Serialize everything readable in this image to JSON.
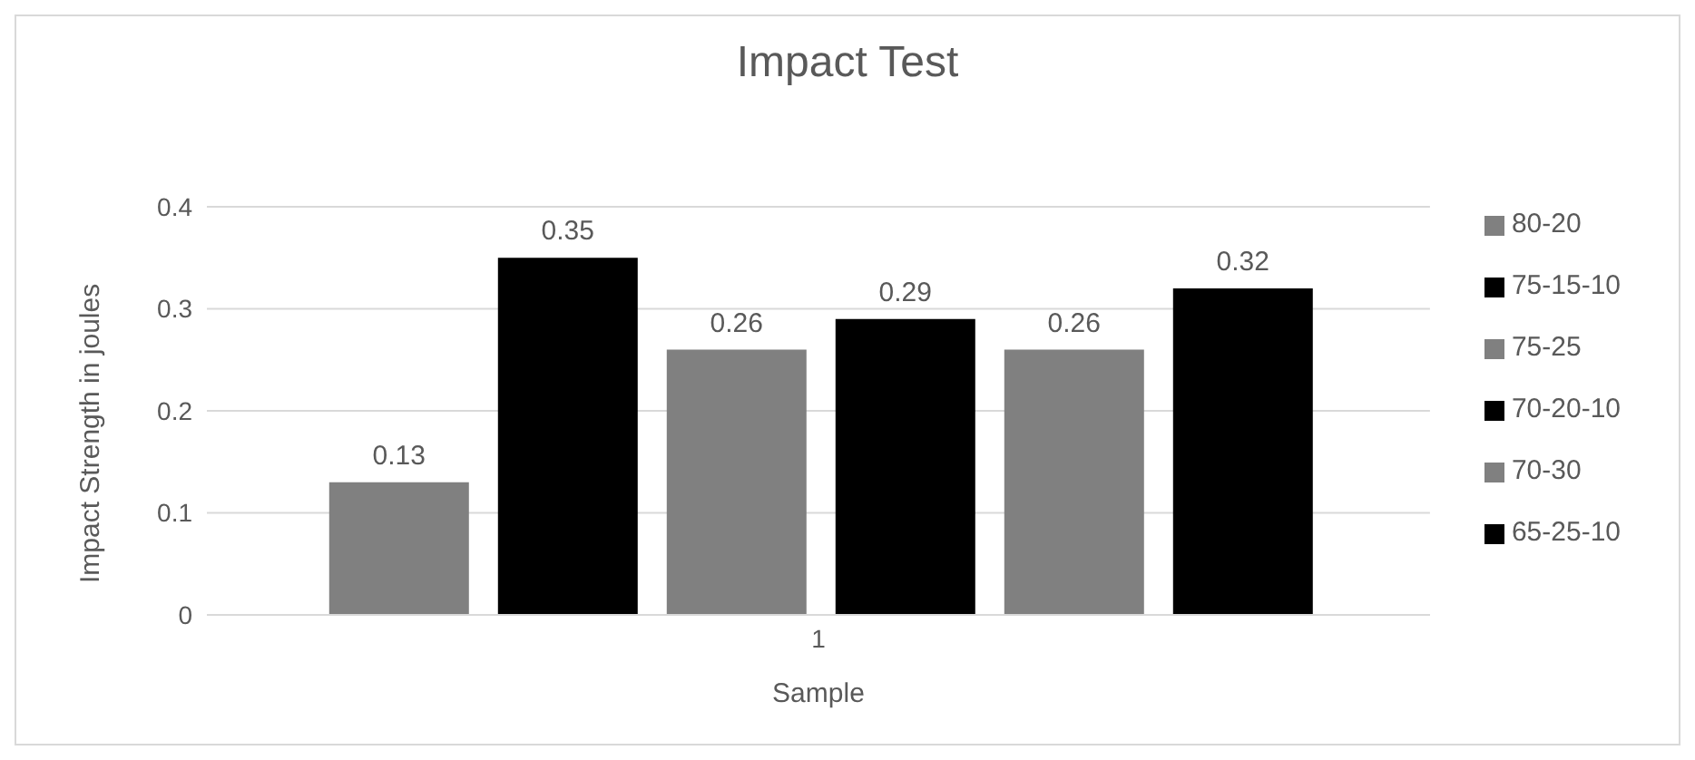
{
  "chart_data": {
    "type": "bar",
    "title": "Impact Test",
    "xlabel": "Sample",
    "ylabel": "Impact Strength in joules",
    "categories": [
      "1"
    ],
    "series": [
      {
        "name": "80-20",
        "color": "#808080",
        "values": [
          0.13
        ]
      },
      {
        "name": "75-15-10",
        "color": "#000000",
        "values": [
          0.35
        ]
      },
      {
        "name": "75-25",
        "color": "#808080",
        "values": [
          0.26
        ]
      },
      {
        "name": "70-20-10",
        "color": "#000000",
        "values": [
          0.29
        ]
      },
      {
        "name": "70-30",
        "color": "#808080",
        "values": [
          0.26
        ]
      },
      {
        "name": "65-25-10",
        "color": "#000000",
        "values": [
          0.32
        ]
      }
    ],
    "ylim": [
      0,
      0.4
    ],
    "yticks": [
      0,
      0.1,
      0.2,
      0.3,
      0.4
    ],
    "grid": "y",
    "legend": "right",
    "data_labels": true
  }
}
